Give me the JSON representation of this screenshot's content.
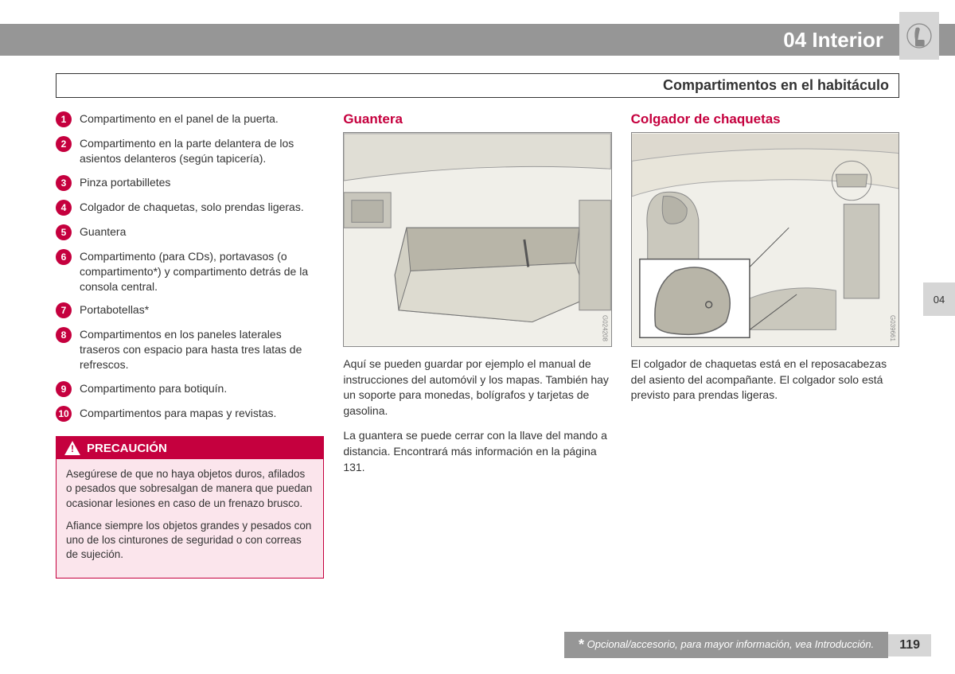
{
  "header": {
    "title": "04 Interior",
    "tab": "04"
  },
  "subheader": "Compartimentos en el habitáculo",
  "colors": {
    "accent": "#c5003e",
    "header_bar": "#969696",
    "light_gray": "#d6d6d6",
    "caution_bg": "#fbe5ec"
  },
  "list": [
    {
      "n": "1",
      "text": "Compartimento en el panel de la puerta."
    },
    {
      "n": "2",
      "text": "Compartimento en la parte delantera de los asientos delanteros (según tapicería)."
    },
    {
      "n": "3",
      "text": "Pinza portabilletes"
    },
    {
      "n": "4",
      "text": "Colgador de chaquetas, solo prendas ligeras."
    },
    {
      "n": "5",
      "text": "Guantera"
    },
    {
      "n": "6",
      "text": "Compartimento (para CDs), portavasos (o compartimento*) y compartimento detrás de la consola central."
    },
    {
      "n": "7",
      "text": "Portabotellas*"
    },
    {
      "n": "8",
      "text": "Compartimentos en los paneles laterales traseros con espacio para hasta tres latas de refrescos."
    },
    {
      "n": "9",
      "text": "Compartimento para botiquín."
    },
    {
      "n": "10",
      "text": "Compartimentos para mapas y revistas."
    }
  ],
  "caution": {
    "label": "PRECAUCIÓN",
    "p1": "Asegúrese de que no haya objetos duros, afilados o pesados que sobresalgan de manera que puedan ocasionar lesiones en caso de un frenazo brusco.",
    "p2": "Afiance siempre los objetos grandes y pesados con uno de los cinturones de seguridad o con correas de sujeción."
  },
  "section_guantera": {
    "title": "Guantera",
    "figure_id": "G024208",
    "p1": "Aquí se pueden guardar por ejemplo el manual de instrucciones del automóvil y los mapas. También hay un soporte para monedas, bolígrafos y tarjetas de gasolina.",
    "p2": "La guantera se puede cerrar con la llave del mando a distancia. Encontrará más información en la página 131."
  },
  "section_colgador": {
    "title": "Colgador de chaquetas",
    "figure_id": "G039661",
    "p1": "El colgador de chaquetas está en el reposacabezas del asiento del acompañante. El colgador solo está previsto para prendas ligeras."
  },
  "footer": {
    "star": "*",
    "note": " Opcional/accesorio, para mayor información, vea Introducción.",
    "page": "119"
  }
}
